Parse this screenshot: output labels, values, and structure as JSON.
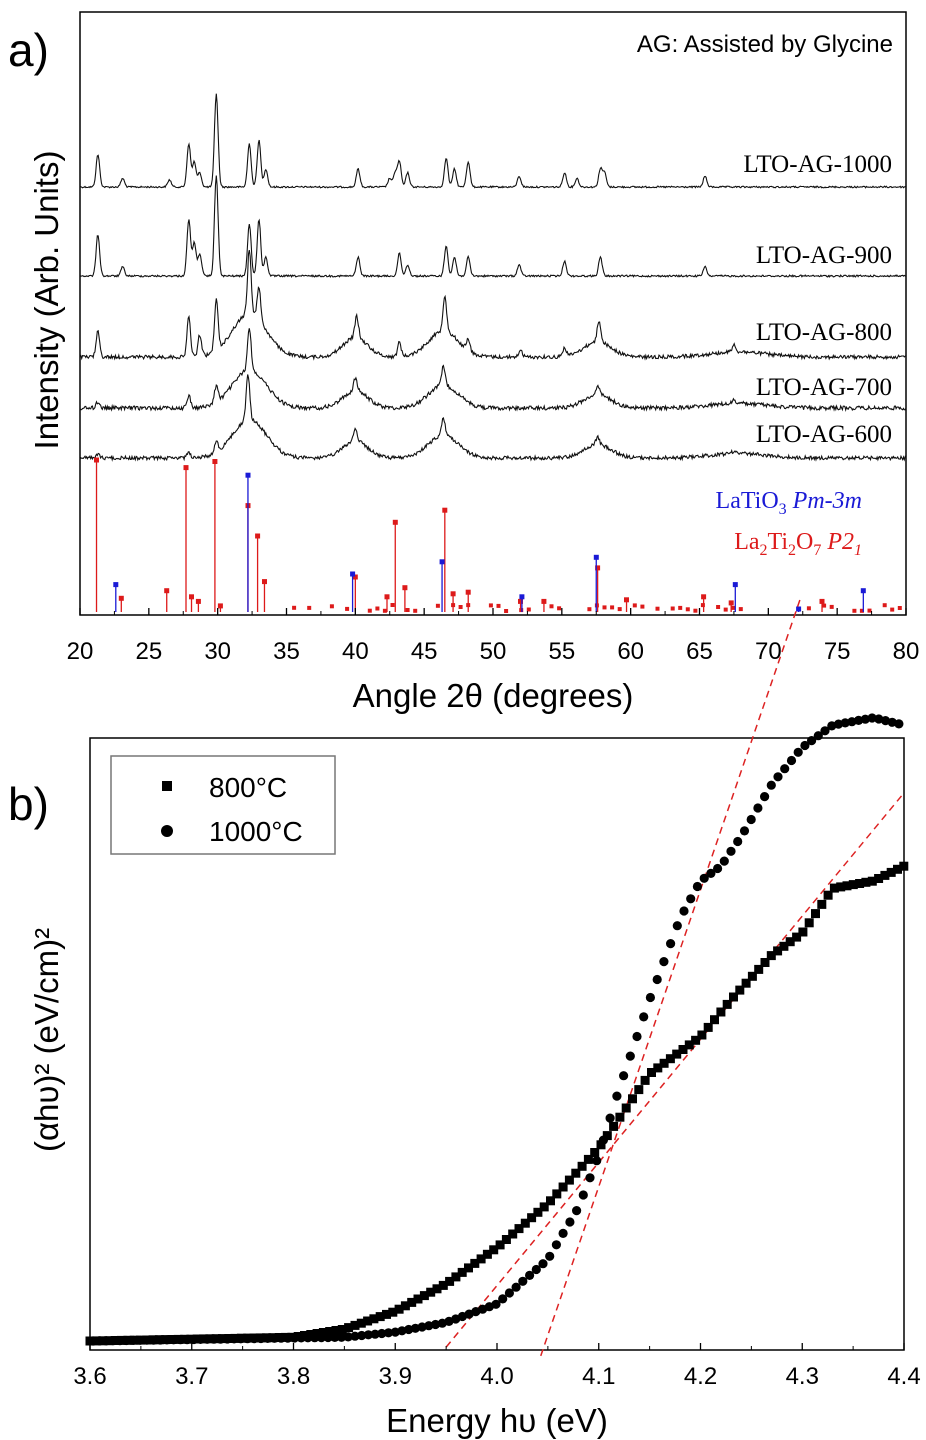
{
  "chart_data": [
    {
      "panel": "a)",
      "type": "line",
      "annotation": "AG: Assisted by Glycine",
      "xlabel": "Angle 2θ (degrees)",
      "ylabel": "Intensity (Arb. Units)",
      "xlim": [
        20,
        80
      ],
      "xticks": [
        20,
        25,
        30,
        35,
        40,
        45,
        50,
        55,
        60,
        65,
        70,
        75,
        80
      ],
      "yticks_shown": false,
      "series": [
        {
          "name": "LTO-AG-1000",
          "peaks": [
            [
              21.3,
              0.45
            ],
            [
              23.1,
              0.12
            ],
            [
              26.5,
              0.1
            ],
            [
              27.9,
              0.6
            ],
            [
              28.3,
              0.35
            ],
            [
              28.7,
              0.2
            ],
            [
              29.9,
              1.3
            ],
            [
              32.3,
              0.6
            ],
            [
              33.0,
              0.65
            ],
            [
              33.5,
              0.25
            ],
            [
              40.2,
              0.25
            ],
            [
              42.5,
              0.12
            ],
            [
              42.9,
              0.2
            ],
            [
              43.2,
              0.35
            ],
            [
              43.8,
              0.2
            ],
            [
              46.6,
              0.4
            ],
            [
              47.2,
              0.25
            ],
            [
              48.2,
              0.35
            ],
            [
              51.9,
              0.15
            ],
            [
              55.2,
              0.2
            ],
            [
              56.1,
              0.12
            ],
            [
              57.8,
              0.25
            ],
            [
              58.1,
              0.2
            ],
            [
              65.4,
              0.15
            ]
          ]
        },
        {
          "name": "LTO-AG-900",
          "peaks": [
            [
              21.3,
              0.55
            ],
            [
              23.1,
              0.12
            ],
            [
              27.9,
              0.75
            ],
            [
              28.3,
              0.45
            ],
            [
              28.7,
              0.3
            ],
            [
              29.9,
              1.35
            ],
            [
              32.3,
              0.7
            ],
            [
              33.0,
              0.75
            ],
            [
              33.5,
              0.25
            ],
            [
              40.2,
              0.25
            ],
            [
              43.2,
              0.3
            ],
            [
              43.8,
              0.15
            ],
            [
              46.6,
              0.4
            ],
            [
              47.2,
              0.25
            ],
            [
              48.2,
              0.25
            ],
            [
              51.9,
              0.15
            ],
            [
              55.2,
              0.2
            ],
            [
              57.8,
              0.25
            ],
            [
              65.4,
              0.12
            ]
          ]
        },
        {
          "name": "LTO-AG-800",
          "peaks": [
            [
              21.3,
              0.35
            ],
            [
              27.9,
              0.55
            ],
            [
              28.7,
              0.3
            ],
            [
              29.9,
              0.7
            ],
            [
              32.3,
              0.9
            ],
            [
              33.0,
              0.45
            ],
            [
              40.1,
              0.3
            ],
            [
              43.2,
              0.2
            ],
            [
              46.5,
              0.5
            ],
            [
              48.2,
              0.15
            ],
            [
              52.0,
              0.1
            ],
            [
              55.2,
              0.12
            ],
            [
              57.7,
              0.3
            ],
            [
              67.5,
              0.1
            ]
          ]
        },
        {
          "name": "LTO-AG-700",
          "peaks": [
            [
              21.3,
              0.15
            ],
            [
              27.9,
              0.3
            ],
            [
              29.9,
              0.4
            ],
            [
              32.3,
              1.0
            ],
            [
              40.0,
              0.3
            ],
            [
              46.4,
              0.45
            ],
            [
              57.6,
              0.22
            ],
            [
              67.5,
              0.08
            ]
          ]
        },
        {
          "name": "LTO-AG-600",
          "peaks": [
            [
              21.3,
              0.08
            ],
            [
              27.9,
              0.15
            ],
            [
              29.9,
              0.25
            ],
            [
              32.2,
              1.1
            ],
            [
              40.0,
              0.3
            ],
            [
              46.4,
              0.4
            ],
            [
              57.6,
              0.18
            ],
            [
              67.5,
              0.06
            ]
          ]
        }
      ],
      "reference_patterns": [
        {
          "formula": "LaTiO3",
          "space_group": "Pm-3m",
          "color": "#1a1ad6",
          "peaks": [
            [
              22.6,
              0.18
            ],
            [
              32.2,
              0.9
            ],
            [
              39.8,
              0.25
            ],
            [
              46.3,
              0.33
            ],
            [
              52.1,
              0.1
            ],
            [
              57.5,
              0.36
            ],
            [
              67.6,
              0.18
            ],
            [
              72.2,
              0.02
            ],
            [
              76.9,
              0.14
            ]
          ]
        },
        {
          "formula": "La2Ti2O7",
          "space_group": "P21",
          "color": "#dd1a1a",
          "peaks": [
            [
              21.2,
              1.0
            ],
            [
              23.0,
              0.09
            ],
            [
              26.3,
              0.14
            ],
            [
              27.7,
              0.95
            ],
            [
              28.1,
              0.1
            ],
            [
              28.6,
              0.07
            ],
            [
              29.8,
              0.99
            ],
            [
              30.2,
              0.04
            ],
            [
              32.2,
              0.7
            ],
            [
              32.9,
              0.5
            ],
            [
              33.4,
              0.2
            ],
            [
              40.0,
              0.23
            ],
            [
              42.3,
              0.1
            ],
            [
              42.9,
              0.59
            ],
            [
              43.6,
              0.16
            ],
            [
              46.5,
              0.67
            ],
            [
              47.1,
              0.12
            ],
            [
              48.2,
              0.13
            ],
            [
              52.0,
              0.07
            ],
            [
              53.7,
              0.07
            ],
            [
              57.6,
              0.29
            ],
            [
              59.7,
              0.08
            ],
            [
              65.3,
              0.1
            ],
            [
              67.3,
              0.06
            ],
            [
              73.9,
              0.07
            ]
          ]
        }
      ]
    },
    {
      "panel": "b)",
      "type": "scatter",
      "xlabel": "Energy hυ (eV)",
      "ylabel": "(αhυ)² (eV/cm)²",
      "xlim": [
        3.6,
        4.4
      ],
      "xticks": [
        3.6,
        3.7,
        3.8,
        3.9,
        4.0,
        4.1,
        4.2,
        4.3,
        4.4
      ],
      "ylim": [
        0,
        1
      ],
      "yticks_shown": false,
      "legend": "top-left",
      "series": [
        {
          "name": "800°C",
          "marker": "square",
          "points": [
            [
              3.6,
              0.0
            ],
            [
              3.8,
              0.005
            ],
            [
              3.85,
              0.016
            ],
            [
              3.9,
              0.04
            ],
            [
              3.95,
              0.077
            ],
            [
              4.0,
              0.126
            ],
            [
              4.05,
              0.185
            ],
            [
              4.1,
              0.26
            ],
            [
              4.12,
              0.3
            ],
            [
              4.15,
              0.36
            ],
            [
              4.2,
              0.41
            ],
            [
              4.23,
              0.46
            ],
            [
              4.27,
              0.52
            ],
            [
              4.3,
              0.55
            ],
            [
              4.33,
              0.61
            ],
            [
              4.37,
              0.62
            ],
            [
              4.4,
              0.64
            ]
          ]
        },
        {
          "name": "1000°C",
          "marker": "circle",
          "points": [
            [
              3.6,
              0.0
            ],
            [
              3.85,
              0.005
            ],
            [
              3.9,
              0.012
            ],
            [
              3.95,
              0.025
            ],
            [
              4.0,
              0.05
            ],
            [
              4.05,
              0.11
            ],
            [
              4.08,
              0.18
            ],
            [
              4.1,
              0.25
            ],
            [
              4.12,
              0.34
            ],
            [
              4.15,
              0.46
            ],
            [
              4.18,
              0.57
            ],
            [
              4.2,
              0.62
            ],
            [
              4.22,
              0.64
            ],
            [
              4.24,
              0.68
            ],
            [
              4.27,
              0.75
            ],
            [
              4.3,
              0.8
            ],
            [
              4.33,
              0.83
            ],
            [
              4.37,
              0.84
            ],
            [
              4.4,
              0.83
            ]
          ]
        }
      ],
      "fit_lines": [
        {
          "series": "800°C",
          "x_intercept": 3.955,
          "slope_per_eV": 1.66,
          "color": "#dd2222",
          "style": "dashed"
        },
        {
          "series": "1000°C",
          "x_intercept": 4.048,
          "slope_per_eV": 4.0,
          "color": "#dd2222",
          "style": "dashed"
        }
      ]
    }
  ]
}
